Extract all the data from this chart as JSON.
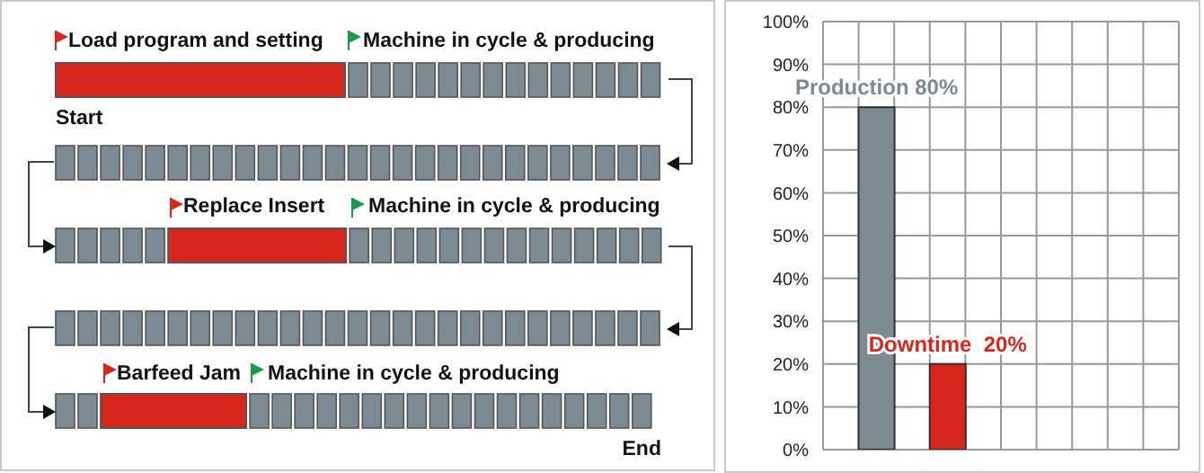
{
  "chart_data": [
    {
      "type": "other",
      "annotations": [
        "Load program and setting",
        "Machine in cycle & producing",
        "Start",
        "Replace Insert",
        "Machine in cycle & producing",
        "Barfeed Jam",
        "Machine in cycle & producing",
        "End"
      ]
    },
    {
      "type": "bar",
      "categories": [
        null,
        null,
        null,
        null,
        null,
        null,
        null,
        null,
        null,
        null
      ],
      "values": [
        null,
        80,
        null,
        20,
        null,
        null,
        null,
        null,
        null,
        null
      ],
      "colors": [
        "#7b8a93",
        "#7b8a93",
        "#7b8a93",
        "#d9261c",
        "#7b8a93",
        "#7b8a93",
        "#7b8a93",
        "#7b8a93",
        "#7b8a93",
        "#7b8a93"
      ],
      "value_labels": [
        null,
        "Production 80%",
        null,
        "Downtime  20%",
        null,
        null,
        null,
        null,
        null,
        null
      ],
      "ylim": [
        0,
        100
      ],
      "yticks": [
        {
          "value": 0,
          "label": "0%"
        },
        {
          "value": 10,
          "label": "10%"
        },
        {
          "value": 20,
          "label": "20%"
        },
        {
          "value": 30,
          "label": "30%"
        },
        {
          "value": 40,
          "label": "40%"
        },
        {
          "value": 50,
          "label": "50%"
        },
        {
          "value": 60,
          "label": "60%"
        },
        {
          "value": 70,
          "label": "70%"
        },
        {
          "value": 80,
          "label": "80%"
        },
        {
          "value": 90,
          "label": "90%"
        },
        {
          "value": 100,
          "label": "100%"
        }
      ],
      "grid": true,
      "tick_labels": "y"
    }
  ]
}
